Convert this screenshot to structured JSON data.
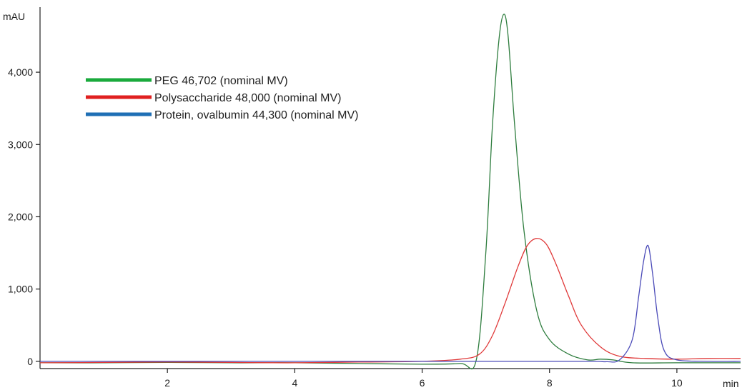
{
  "chart_data": {
    "type": "line",
    "xlabel": "min",
    "ylabel": "mAU",
    "xlim": [
      0,
      11
    ],
    "ylim": [
      -100,
      4900
    ],
    "xticks": [
      2,
      4,
      6,
      8,
      10
    ],
    "xtick_labels": [
      "2",
      "4",
      "6",
      "8",
      "10"
    ],
    "yticks": [
      0,
      1000,
      2000,
      3000,
      4000
    ],
    "ytick_labels": [
      "0",
      "1,000",
      "2,000",
      "3,000",
      "4,000"
    ],
    "grid": false,
    "legend_position": "top-left",
    "series": [
      {
        "name": "PEG 46,702 (nominal MV)",
        "legend_color": "#1aaa3c",
        "trace_color": "#2e7d3e",
        "x": [
          0,
          1,
          2,
          3,
          4,
          5,
          6,
          6.6,
          6.85,
          7.0,
          7.1,
          7.2,
          7.28,
          7.35,
          7.45,
          7.6,
          7.8,
          8.0,
          8.3,
          8.6,
          8.8,
          9.0,
          9.3,
          10,
          11
        ],
        "y": [
          -20,
          -20,
          -15,
          -20,
          -20,
          -30,
          -40,
          -30,
          20,
          1500,
          3200,
          4400,
          4800,
          4500,
          3300,
          1800,
          700,
          300,
          100,
          20,
          30,
          20,
          -20,
          -20,
          -20
        ]
      },
      {
        "name": "Polysaccharide 48,000 (nominal MV)",
        "legend_color": "#e02020",
        "trace_color": "#e03a3a",
        "x": [
          0,
          1,
          2,
          3,
          4,
          5,
          6,
          6.6,
          6.9,
          7.1,
          7.3,
          7.5,
          7.65,
          7.8,
          7.95,
          8.1,
          8.3,
          8.5,
          8.8,
          9.1,
          9.5,
          10,
          10.5,
          11
        ],
        "y": [
          -20,
          -15,
          -10,
          -15,
          -20,
          -10,
          0,
          30,
          100,
          350,
          800,
          1300,
          1600,
          1700,
          1620,
          1350,
          900,
          500,
          200,
          70,
          40,
          30,
          40,
          40
        ]
      },
      {
        "name": "Protein, ovalbumin 44,300 (nominal MV)",
        "legend_color": "#1f6fb5",
        "trace_color": "#4a4ab8",
        "x": [
          0,
          1,
          2,
          3,
          4,
          5,
          6,
          7,
          8,
          8.7,
          8.9,
          9.1,
          9.3,
          9.4,
          9.48,
          9.55,
          9.62,
          9.7,
          9.8,
          10,
          10.5,
          11
        ],
        "y": [
          0,
          0,
          0,
          0,
          0,
          0,
          0,
          0,
          0,
          0,
          -5,
          20,
          300,
          900,
          1400,
          1600,
          1200,
          600,
          150,
          20,
          0,
          0
        ]
      }
    ]
  }
}
